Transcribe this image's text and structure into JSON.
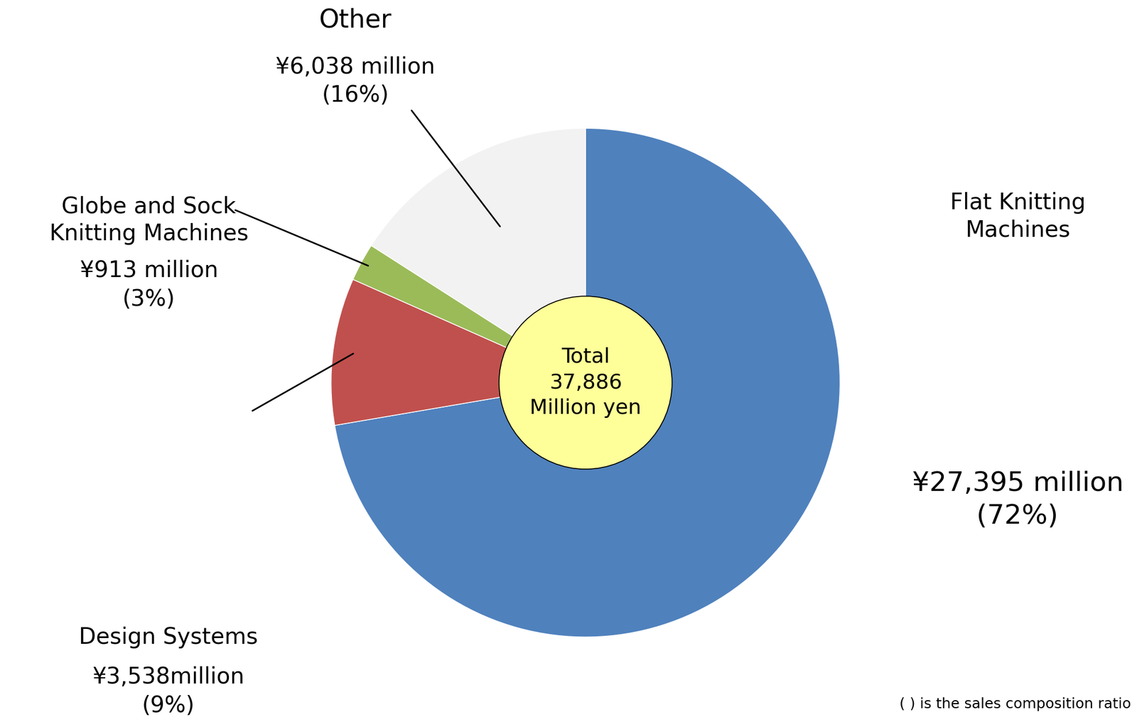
{
  "chart_data": {
    "type": "pie",
    "categories": [
      "Flat Knitting Machines",
      "Design Systems",
      "Globe and Sock Knitting Machines",
      "Other"
    ],
    "values": [
      27395,
      3538,
      913,
      6038
    ],
    "value_labels": [
      "¥27,395 million",
      "¥3,538million",
      "¥913 million",
      "¥6,038 million"
    ],
    "percentages": [
      72,
      9,
      3,
      16
    ],
    "percent_labels": [
      "(72%)",
      "(9%)",
      "(3%)",
      "(16%)"
    ],
    "colors": [
      "#4F81BD",
      "#C0504D",
      "#9BBB59",
      "#F2F2F2"
    ],
    "total_title": "Total",
    "total": {
      "value": 37886,
      "label": "37,886"
    },
    "total_unit": "Million yen",
    "note": "( ) is the sales composition ratio"
  }
}
